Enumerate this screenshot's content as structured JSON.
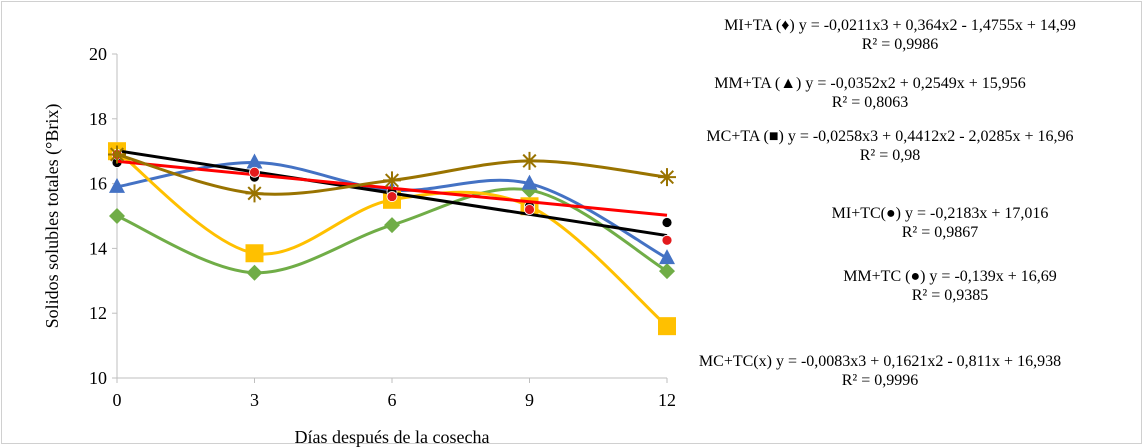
{
  "chart_data": {
    "type": "scatter",
    "xlabel": "Días después de la cosecha",
    "ylabel": "Solidos solubles totales (°Brix)",
    "xlim": [
      0,
      12
    ],
    "ylim": [
      10,
      20
    ],
    "x_ticks": [
      "0",
      "3",
      "6",
      "9",
      "12"
    ],
    "y_ticks": [
      "10",
      "12",
      "14",
      "16",
      "18",
      "20"
    ],
    "grid": false,
    "legend": "equations listed at right",
    "series": [
      {
        "marker": "diamond",
        "color": "#70ad47",
        "x": [
          0,
          3,
          6,
          9,
          12
        ],
        "y": [
          15.0,
          13.25,
          14.72,
          15.8,
          13.3
        ],
        "fit": "poly3",
        "coef": [
          -0.0211,
          0.364,
          -1.4755,
          14.99
        ],
        "fit_color": "#70ad47"
      },
      {
        "marker": "triangle",
        "color": "#4472c4",
        "x": [
          0,
          3,
          6,
          9,
          12
        ],
        "y": [
          15.9,
          16.65,
          15.8,
          16.0,
          13.7
        ],
        "fit": "poly2",
        "coef": [
          -0.0352,
          0.2549,
          15.956
        ],
        "fit_color": "#4472c4"
      },
      {
        "marker": "square",
        "color": "#ffc000",
        "x": [
          0,
          3,
          6,
          9,
          12
        ],
        "y": [
          17.0,
          13.85,
          15.5,
          15.3,
          11.6
        ],
        "fit": "poly3",
        "coef": [
          -0.0258,
          0.4412,
          -2.0285,
          16.96
        ],
        "fit_color": "#ffc000"
      },
      {
        "marker": "circle",
        "color": "#000000",
        "x": [
          0,
          3,
          6,
          9,
          12
        ],
        "y": [
          16.65,
          16.2,
          15.75,
          15.3,
          14.8
        ],
        "fit": "linear",
        "coef": [
          -0.2183,
          17.016
        ],
        "fit_color": "#000000"
      },
      {
        "marker": "circle",
        "color": "#e31a1c",
        "x": [
          0,
          3,
          6,
          9,
          12
        ],
        "y": [
          16.9,
          16.35,
          15.6,
          15.2,
          14.25
        ],
        "fit": "linear",
        "coef": [
          -0.139,
          16.69
        ],
        "fit_color": "#ff0000"
      },
      {
        "marker": "star",
        "color": "#997300",
        "x": [
          0,
          3,
          6,
          9,
          12
        ],
        "y": [
          16.9,
          15.7,
          16.1,
          16.7,
          16.2
        ],
        "fit": "poly3",
        "coef": [
          -0.0083,
          0.1621,
          -0.811,
          16.938
        ],
        "fit_color": "#997300"
      }
    ],
    "annotations": [
      {
        "line1": "MI+TA (♦) y = -0,0211x3 + 0,364x2 - 1,4755x + 14,99",
        "line2": "R² = 0,9986"
      },
      {
        "line1": "MM+TA (▲) y = -0,0352x2 + 0,2549x + 15,956",
        "line2": "R² = 0,8063"
      },
      {
        "line1": "MC+TA (■) y = -0,0258x3 + 0,4412x2 - 2,0285x + 16,96",
        "line2": "R² = 0,98"
      },
      {
        "line1": "MI+TC(●) y = -0,2183x + 17,016",
        "line2": "R² = 0,9867"
      },
      {
        "line1": "MM+TC (●) y = -0,139x + 16,69",
        "line2": "R² = 0,9385"
      },
      {
        "line1": "MC+TC(x) y = -0,0083x3 + 0,1621x2 - 0,811x + 16,938",
        "line2": "R² = 0,9996"
      }
    ]
  }
}
